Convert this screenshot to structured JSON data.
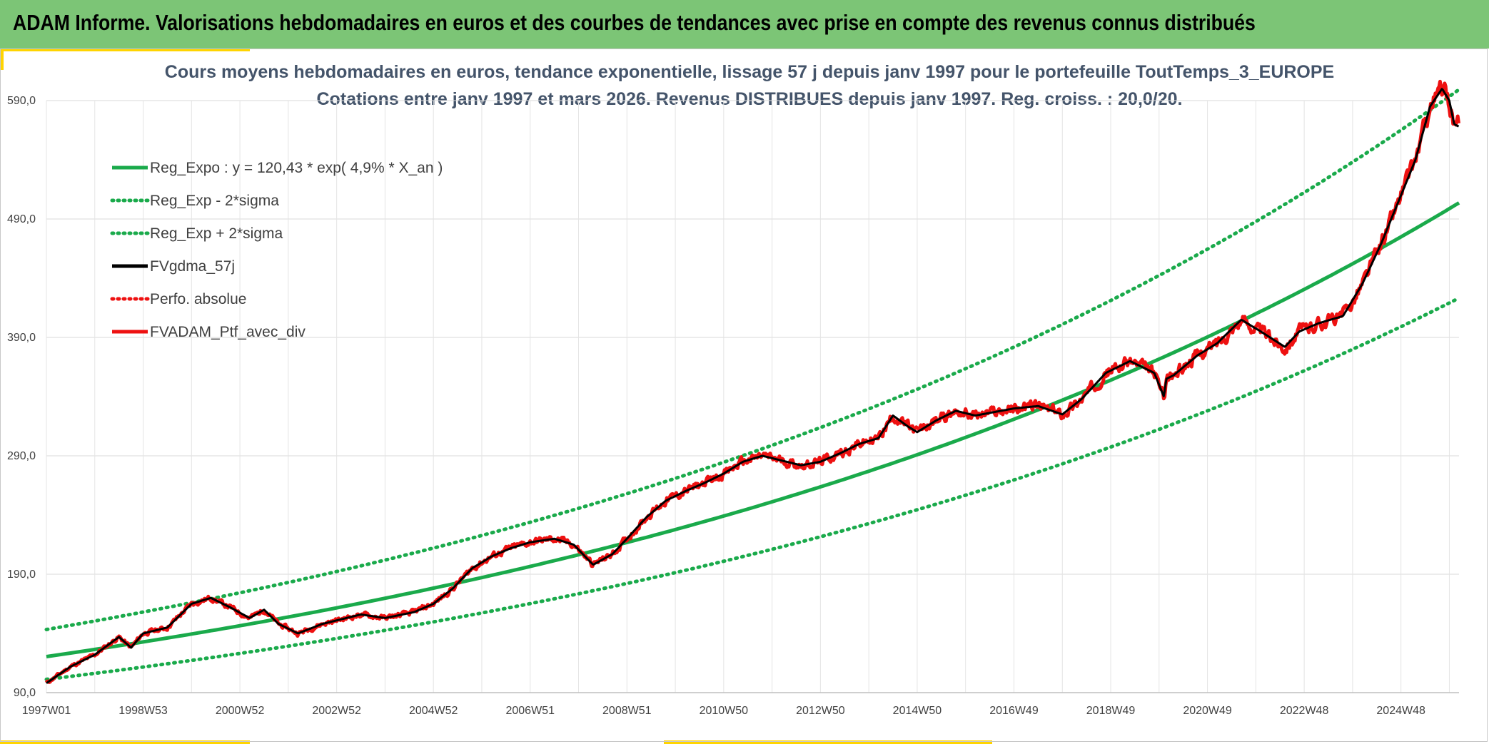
{
  "header": {
    "title": "ADAM Informe. Valorisations hebdomadaires en euros et des courbes de tendances avec prise en compte des revenus connus distribués"
  },
  "colors": {
    "banner": "#7cc576",
    "accent": "#ffd400",
    "trend": "#1aaa4b",
    "gdma": "#000000",
    "ptf": "#ee1111"
  },
  "chart_data": {
    "type": "line",
    "title": "Cours moyens hebdomadaires en euros, tendance exponentielle, lissage 57 j depuis janv 1997 pour le portefeuille ToutTemps_3_EUROPE",
    "subtitle": "Cotations entre janv 1997 et mars 2026. Revenus DISTRIBUES depuis janv 1997. Reg. croiss. : 20,0/20.",
    "x_tick_labels": [
      "1997W01",
      "1998W53",
      "2000W52",
      "2002W52",
      "2004W52",
      "2006W51",
      "2008W51",
      "2010W50",
      "2012W50",
      "2014W50",
      "2016W49",
      "2018W49",
      "2020W49",
      "2022W48",
      "2024W48"
    ],
    "y_tick_labels": [
      "90,0",
      "190,0",
      "290,0",
      "390,0",
      "490,0",
      "590,0"
    ],
    "x_range": [
      1997.0,
      2026.2
    ],
    "ylim": [
      90,
      590
    ],
    "regression": {
      "a": 120.43,
      "rate": 0.049,
      "sigma_factor": 1.19
    },
    "legend": [
      {
        "label": "Reg_Expo : y = 120,43 * exp( 4,9% *  X_an )",
        "style": "solid",
        "color": "#1aaa4b"
      },
      {
        "label": "Reg_Exp - 2*sigma",
        "style": "dotted",
        "color": "#1aaa4b"
      },
      {
        "label": "Reg_Exp + 2*sigma",
        "style": "dotted",
        "color": "#1aaa4b"
      },
      {
        "label": "FVgdma_57j",
        "style": "solid",
        "color": "#000000"
      },
      {
        "label": "Perfo. absolue",
        "style": "dotted",
        "color": "#ee1111"
      },
      {
        "label": "FVADAM_Ptf_avec_div",
        "style": "solid",
        "color": "#ee1111"
      }
    ],
    "series": [
      {
        "name": "FVADAM_Ptf_avec_div",
        "x": [
          1997.0,
          1997.5,
          1998.0,
          1998.5,
          1998.75,
          1999.0,
          1999.5,
          2000.0,
          2000.4,
          2000.8,
          2001.2,
          2001.5,
          2001.8,
          2002.2,
          2002.7,
          2003.1,
          2003.5,
          2004.0,
          2004.6,
          2005.0,
          2005.4,
          2005.8,
          2006.2,
          2006.6,
          2007.0,
          2007.5,
          2007.9,
          2008.3,
          2008.7,
          2009.0,
          2009.4,
          2009.8,
          2010.2,
          2010.6,
          2011.0,
          2011.4,
          2011.8,
          2012.2,
          2012.6,
          2013.0,
          2013.4,
          2013.8,
          2014.2,
          2014.5,
          2014.8,
          2015.0,
          2015.4,
          2015.8,
          2016.2,
          2016.6,
          2017.0,
          2017.5,
          2018.0,
          2018.4,
          2018.9,
          2019.4,
          2019.9,
          2020.1,
          2020.15,
          2020.3,
          2020.8,
          2021.2,
          2021.7,
          2022.1,
          2022.6,
          2022.9,
          2023.3,
          2023.8,
          2024.2,
          2024.6,
          2025.0,
          2025.3,
          2025.6,
          2025.85,
          2026.0,
          2026.1,
          2026.2
        ],
        "values": [
          98,
          112,
          122,
          137,
          128,
          140,
          145,
          165,
          170,
          162,
          153,
          160,
          148,
          140,
          148,
          152,
          156,
          153,
          158,
          165,
          178,
          195,
          205,
          212,
          217,
          220,
          215,
          198,
          207,
          220,
          238,
          252,
          260,
          267,
          275,
          285,
          290,
          286,
          282,
          285,
          292,
          300,
          305,
          324,
          315,
          310,
          320,
          328,
          324,
          327,
          330,
          332,
          325,
          338,
          360,
          370,
          360,
          340,
          355,
          358,
          375,
          385,
          405,
          395,
          382,
          395,
          402,
          408,
          435,
          470,
          510,
          540,
          585,
          600,
          590,
          570,
          568
        ]
      }
    ]
  }
}
